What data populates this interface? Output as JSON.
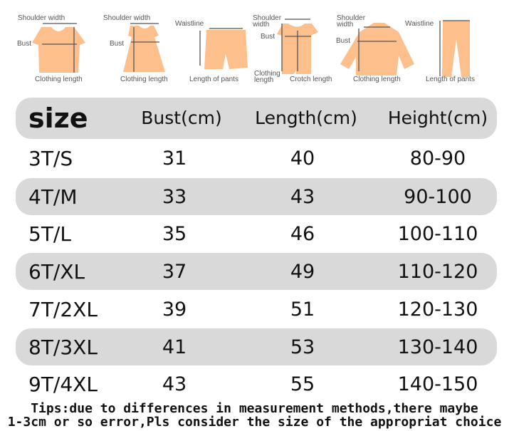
{
  "diagrams": {
    "tshirt": {
      "shoulder": "Shoulder width",
      "bust": "Bust",
      "length": "Clothing length"
    },
    "dress": {
      "shoulder": "Shoulder width",
      "bust": "Bust",
      "length": "Clothing length"
    },
    "shorts": {
      "waist": "Waistline",
      "length": "Length of pants"
    },
    "romper": {
      "shoulder": "Shoulder width",
      "bust": "Bust",
      "length": "Clothing length",
      "crotch": "Crotch length"
    },
    "jacket": {
      "shoulder": "Shoulder width",
      "bust": "Bust",
      "length": "Clothing length"
    },
    "pants": {
      "waist": "Waistline",
      "length": "Length of pants"
    }
  },
  "colors": {
    "garment": "#fdbf8c",
    "band": "#d9d9d9"
  },
  "table": {
    "headers": [
      "size",
      "Bust(cm)",
      "Length(cm)",
      "Height(cm)"
    ],
    "rows": [
      [
        "3T/S",
        "31",
        "40",
        "80-90"
      ],
      [
        "4T/M",
        "33",
        "43",
        "90-100"
      ],
      [
        "5T/L",
        "35",
        "46",
        "100-110"
      ],
      [
        "6T/XL",
        "37",
        "49",
        "110-120"
      ],
      [
        "7T/2XL",
        "39",
        "51",
        "120-130"
      ],
      [
        "8T/3XL",
        "41",
        "53",
        "130-140"
      ],
      [
        "9T/4XL",
        "43",
        "55",
        "140-150"
      ]
    ]
  },
  "tips": {
    "line1": "Tips:due to differences in measurement methods,there maybe",
    "line2": "1-3cm or so error,Pls consider the size of the appropriat choice"
  }
}
